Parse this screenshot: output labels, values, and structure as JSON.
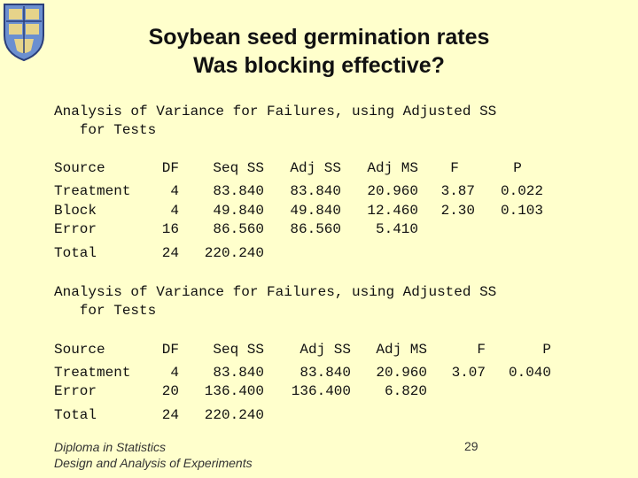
{
  "title_line1": "Soybean seed germination rates",
  "title_line2": "Was blocking effective?",
  "table1": {
    "caption_line1": "Analysis of Variance for Failures, using Adjusted SS",
    "caption_line2": "   for Tests",
    "headers": [
      "Source",
      "DF",
      "Seq SS",
      "Adj SS",
      "Adj MS",
      "F",
      "P"
    ],
    "rows": [
      [
        "Treatment",
        "4",
        "83.840",
        "83.840",
        "20.960",
        "3.87",
        "0.022"
      ],
      [
        "Block",
        "4",
        "49.840",
        "49.840",
        "12.460",
        "2.30",
        "0.103"
      ],
      [
        "Error",
        "16",
        "86.560",
        "86.560",
        "5.410",
        "",
        ""
      ],
      [
        "Total",
        "24",
        "220.240",
        "",
        "",
        "",
        ""
      ]
    ]
  },
  "table2": {
    "caption_line1": "Analysis of Variance for Failures, using Adjusted SS",
    "caption_line2": "   for Tests",
    "headers": [
      "Source",
      "DF",
      "Seq SS",
      "Adj SS",
      "Adj MS",
      "F",
      "P"
    ],
    "rows": [
      [
        "Treatment",
        "4",
        "83.840",
        "83.840",
        "20.960",
        "3.07",
        "0.040"
      ],
      [
        "Error",
        "20",
        "136.400",
        "136.400",
        "6.820",
        "",
        ""
      ],
      [
        "Total",
        "24",
        "220.240",
        "",
        "",
        "",
        ""
      ]
    ]
  },
  "footer_line1": "Diploma in Statistics",
  "footer_line2": "Design and Analysis of Experiments",
  "page_number": "29",
  "crest_icon": "university-crest-icon"
}
